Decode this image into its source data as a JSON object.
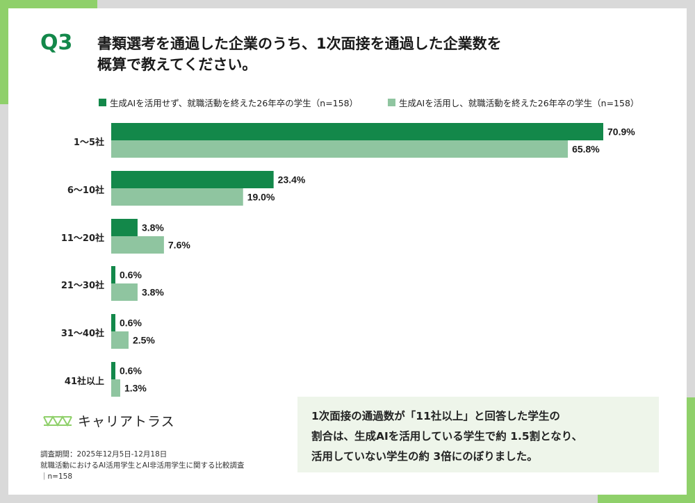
{
  "question_label": "Q3",
  "title_lines": [
    "書類選考を通過した企業のうち、1次面接を通過した企業数を",
    "概算で教えてください。"
  ],
  "colors": {
    "dark": "#13884a",
    "light": "#8fc5a0",
    "accent": "#8fd06a"
  },
  "chart_data": {
    "type": "bar",
    "orientation": "horizontal",
    "categories": [
      "1〜5社",
      "6〜10社",
      "11〜20社",
      "21〜30社",
      "31〜40社",
      "41社以上"
    ],
    "series": [
      {
        "name": "生成AIを活用せず、就職活動を終えた26年卒の学生（n=158）",
        "values": [
          70.9,
          23.4,
          3.8,
          0.6,
          0.6,
          0.6
        ],
        "color": "#13884a"
      },
      {
        "name": "生成AIを活用し、就職活動を終えた26年卒の学生（n=158）",
        "values": [
          65.8,
          19.0,
          7.6,
          3.8,
          2.5,
          1.3
        ],
        "color": "#8fc5a0"
      }
    ],
    "value_labels": [
      [
        "70.9%",
        "23.4%",
        "3.8%",
        "0.6%",
        "0.6%",
        "0.6%"
      ],
      [
        "65.8%",
        "19.0%",
        "7.6%",
        "3.8%",
        "2.5%",
        "1.3%"
      ]
    ],
    "xlim": [
      0,
      70.9
    ],
    "legend_position": "top",
    "grid": false
  },
  "logo": {
    "text": "キャリアトラス",
    "icon": "triangle-truss-icon"
  },
  "footnotes": [
    "調査期間：2025年12月5日-12月18日",
    "就職活動におけるAI活用学生とAI非活用学生に関する比較調査",
    "｜n=158"
  ],
  "summary_lines": [
    "1次面接の通過数が「11社以上」と回答した学生の",
    "割合は、生成AIを活用している学生で約 1.5割となり、",
    "活用していない学生の約 3倍にのぼりました。"
  ]
}
